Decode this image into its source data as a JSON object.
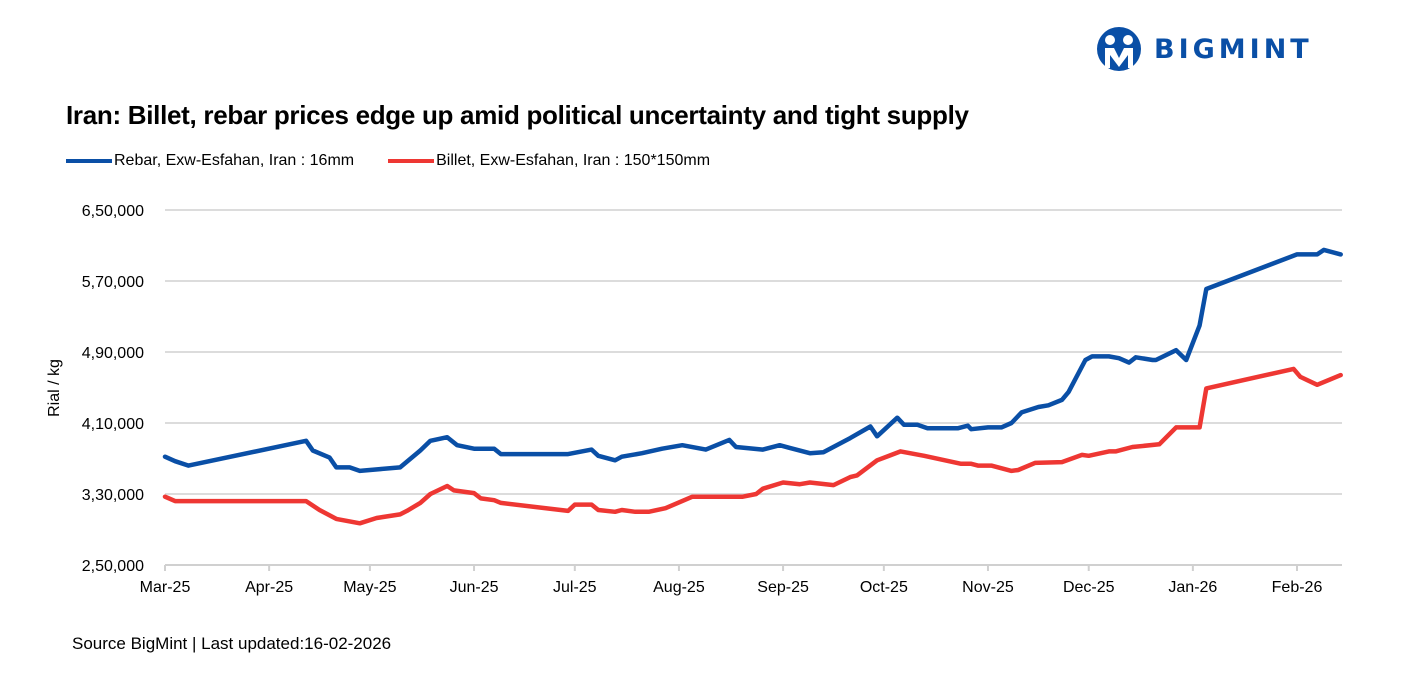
{
  "logo": {
    "text": "BIGMINT",
    "color": "#0a4fa6"
  },
  "chart_data": {
    "type": "line",
    "title": "Iran: Billet, rebar prices edge up amid political uncertainty and tight supply",
    "xlabel": "",
    "ylabel": "Rial / kg",
    "ylim": [
      250000,
      650000
    ],
    "yticks": [
      250000,
      330000,
      410000,
      490000,
      570000,
      650000
    ],
    "ytick_labels": [
      "2,50,000",
      "3,30,000",
      "4,10,000",
      "4,90,000",
      "5,70,000",
      "6,50,000"
    ],
    "xtick_labels": [
      "Mar-25",
      "Apr-25",
      "May-25",
      "Jun-25",
      "Jul-25",
      "Aug-25",
      "Sep-25",
      "Oct-25",
      "Nov-25",
      "Dec-25",
      "Jan-26",
      "Feb-26"
    ],
    "xticks": [
      "2025-03-01",
      "2025-04-01",
      "2025-05-01",
      "2025-06-01",
      "2025-07-01",
      "2025-08-01",
      "2025-09-01",
      "2025-10-01",
      "2025-11-01",
      "2025-12-01",
      "2026-01-01",
      "2026-02-01"
    ],
    "grid": "horizontal",
    "legend_position": "top-left",
    "series": [
      {
        "name": "Rebar, Exw-Esfahan, Iran : 16mm",
        "color": "#0a4fa6",
        "points": [
          [
            "2025-03-01",
            372000
          ],
          [
            "2025-03-04",
            367000
          ],
          [
            "2025-03-08",
            362000
          ],
          [
            "2025-04-12",
            390000
          ],
          [
            "2025-04-14",
            379000
          ],
          [
            "2025-04-19",
            371000
          ],
          [
            "2025-04-21",
            360000
          ],
          [
            "2025-04-25",
            360000
          ],
          [
            "2025-04-28",
            356000
          ],
          [
            "2025-05-04",
            358000
          ],
          [
            "2025-05-10",
            360000
          ],
          [
            "2025-05-16",
            379000
          ],
          [
            "2025-05-19",
            390000
          ],
          [
            "2025-05-24",
            394000
          ],
          [
            "2025-05-27",
            385000
          ],
          [
            "2025-06-01",
            381000
          ],
          [
            "2025-06-07",
            381000
          ],
          [
            "2025-06-09",
            375000
          ],
          [
            "2025-06-29",
            375000
          ],
          [
            "2025-07-06",
            380000
          ],
          [
            "2025-07-08",
            373000
          ],
          [
            "2025-07-13",
            368000
          ],
          [
            "2025-07-15",
            372000
          ],
          [
            "2025-07-21",
            376000
          ],
          [
            "2025-07-27",
            381000
          ],
          [
            "2025-08-02",
            385000
          ],
          [
            "2025-08-09",
            380000
          ],
          [
            "2025-08-16",
            391000
          ],
          [
            "2025-08-18",
            383000
          ],
          [
            "2025-08-26",
            380000
          ],
          [
            "2025-08-31",
            385000
          ],
          [
            "2025-09-03",
            382000
          ],
          [
            "2025-09-09",
            376000
          ],
          [
            "2025-09-13",
            377000
          ],
          [
            "2025-09-21",
            393000
          ],
          [
            "2025-09-27",
            406000
          ],
          [
            "2025-09-29",
            395000
          ],
          [
            "2025-10-05",
            416000
          ],
          [
            "2025-10-07",
            408000
          ],
          [
            "2025-10-11",
            408000
          ],
          [
            "2025-10-14",
            404000
          ],
          [
            "2025-10-23",
            404000
          ],
          [
            "2025-10-26",
            407000
          ],
          [
            "2025-10-27",
            403000
          ],
          [
            "2025-11-01",
            405000
          ],
          [
            "2025-11-05",
            405000
          ],
          [
            "2025-11-08",
            410000
          ],
          [
            "2025-11-11",
            422000
          ],
          [
            "2025-11-16",
            428000
          ],
          [
            "2025-11-19",
            430000
          ],
          [
            "2025-11-23",
            436000
          ],
          [
            "2025-11-25",
            445000
          ],
          [
            "2025-11-30",
            481000
          ],
          [
            "2025-12-02",
            485000
          ],
          [
            "2025-12-07",
            485000
          ],
          [
            "2025-12-10",
            483000
          ],
          [
            "2025-12-13",
            478000
          ],
          [
            "2025-12-15",
            484000
          ],
          [
            "2025-12-20",
            481000
          ],
          [
            "2025-12-21",
            481000
          ],
          [
            "2025-12-27",
            492000
          ],
          [
            "2025-12-30",
            481000
          ],
          [
            "2026-01-03",
            520000
          ],
          [
            "2026-01-05",
            561000
          ],
          [
            "2026-02-01",
            600000
          ],
          [
            "2026-02-07",
            600000
          ],
          [
            "2026-02-09",
            605000
          ],
          [
            "2026-02-14",
            600000
          ]
        ]
      },
      {
        "name": "Billet, Exw-Esfahan, Iran : 150*150mm",
        "color": "#ee3733",
        "points": [
          [
            "2025-03-01",
            327000
          ],
          [
            "2025-03-04",
            322000
          ],
          [
            "2025-04-12",
            322000
          ],
          [
            "2025-04-16",
            312000
          ],
          [
            "2025-04-21",
            302000
          ],
          [
            "2025-04-28",
            297000
          ],
          [
            "2025-05-03",
            303000
          ],
          [
            "2025-05-10",
            307000
          ],
          [
            "2025-05-12",
            311000
          ],
          [
            "2025-05-16",
            320000
          ],
          [
            "2025-05-19",
            330000
          ],
          [
            "2025-05-24",
            339000
          ],
          [
            "2025-05-26",
            334000
          ],
          [
            "2025-06-01",
            331000
          ],
          [
            "2025-06-03",
            325000
          ],
          [
            "2025-06-07",
            323000
          ],
          [
            "2025-06-09",
            320000
          ],
          [
            "2025-06-29",
            311000
          ],
          [
            "2025-07-01",
            318000
          ],
          [
            "2025-07-06",
            318000
          ],
          [
            "2025-07-08",
            312000
          ],
          [
            "2025-07-13",
            310000
          ],
          [
            "2025-07-15",
            312000
          ],
          [
            "2025-07-19",
            310000
          ],
          [
            "2025-07-23",
            310000
          ],
          [
            "2025-07-28",
            314000
          ],
          [
            "2025-08-05",
            327000
          ],
          [
            "2025-08-20",
            327000
          ],
          [
            "2025-08-24",
            330000
          ],
          [
            "2025-08-26",
            336000
          ],
          [
            "2025-09-01",
            343000
          ],
          [
            "2025-09-06",
            341000
          ],
          [
            "2025-09-09",
            343000
          ],
          [
            "2025-09-16",
            340000
          ],
          [
            "2025-09-21",
            349000
          ],
          [
            "2025-09-23",
            351000
          ],
          [
            "2025-09-29",
            368000
          ],
          [
            "2025-10-06",
            378000
          ],
          [
            "2025-10-13",
            373000
          ],
          [
            "2025-10-24",
            364000
          ],
          [
            "2025-10-27",
            364000
          ],
          [
            "2025-10-29",
            362000
          ],
          [
            "2025-11-02",
            362000
          ],
          [
            "2025-11-08",
            356000
          ],
          [
            "2025-11-10",
            357000
          ],
          [
            "2025-11-15",
            365000
          ],
          [
            "2025-11-23",
            366000
          ],
          [
            "2025-11-29",
            374000
          ],
          [
            "2025-12-01",
            373000
          ],
          [
            "2025-12-07",
            378000
          ],
          [
            "2025-12-09",
            378000
          ],
          [
            "2025-12-14",
            383000
          ],
          [
            "2025-12-22",
            386000
          ],
          [
            "2025-12-27",
            405000
          ],
          [
            "2026-01-03",
            405000
          ],
          [
            "2026-01-05",
            449000
          ],
          [
            "2026-01-31",
            471000
          ],
          [
            "2026-02-02",
            462000
          ],
          [
            "2026-02-07",
            453000
          ],
          [
            "2026-02-14",
            464000
          ]
        ]
      }
    ]
  },
  "footer": {
    "source": "Source BigMint | Last updated:16-02-2026"
  }
}
